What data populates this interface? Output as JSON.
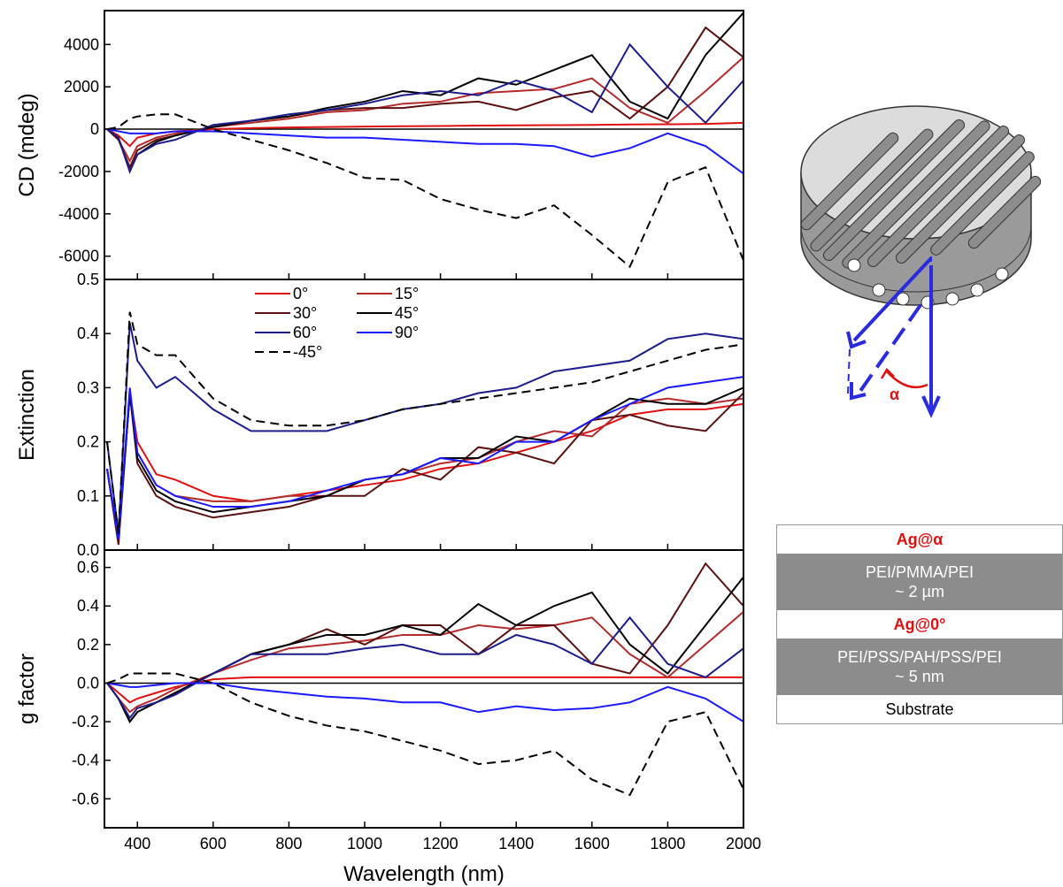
{
  "chart_data": [
    {
      "type": "line",
      "y_label": "CD (mdeg)",
      "xlim": [
        313,
        2000
      ],
      "xticks": [
        400,
        600,
        800,
        1000,
        1200,
        1400,
        1600,
        1800,
        2000
      ],
      "ylim": [
        -7100,
        5600
      ],
      "yticks": [
        -6000,
        -4000,
        -2000,
        0,
        2000,
        4000
      ],
      "zero_line": true,
      "x": [
        320,
        350,
        380,
        400,
        450,
        500,
        600,
        700,
        800,
        900,
        1000,
        1100,
        1200,
        1300,
        1400,
        1500,
        1600,
        1700,
        1800,
        1900,
        2000
      ],
      "series": [
        {
          "name": "0°",
          "color": "#e01010",
          "values": [
            0,
            -300,
            -800,
            -400,
            -200,
            -100,
            0,
            50,
            80,
            100,
            120,
            140,
            150,
            170,
            180,
            190,
            200,
            220,
            230,
            250,
            300
          ]
        },
        {
          "name": "15°",
          "color": "#b52a2a",
          "values": [
            0,
            -500,
            -1500,
            -800,
            -400,
            -200,
            100,
            300,
            500,
            800,
            900,
            1200,
            1300,
            1700,
            1800,
            1900,
            2400,
            1000,
            300,
            1800,
            3400
          ]
        },
        {
          "name": "30°",
          "color": "#5c1010",
          "values": [
            0,
            -500,
            -1800,
            -1000,
            -500,
            -300,
            100,
            400,
            600,
            900,
            1000,
            1000,
            1200,
            1300,
            900,
            1500,
            1800,
            500,
            2000,
            4800,
            3400
          ]
        },
        {
          "name": "45°",
          "color": "#000000",
          "values": [
            0,
            -400,
            -2000,
            -1200,
            -600,
            -300,
            100,
            400,
            600,
            1000,
            1300,
            1800,
            1600,
            2400,
            2100,
            2800,
            3500,
            1300,
            500,
            3500,
            5500
          ]
        },
        {
          "name": "60°",
          "color": "#1c1c8c",
          "values": [
            0,
            -400,
            -2000,
            -1200,
            -700,
            -500,
            200,
            400,
            700,
            900,
            1200,
            1600,
            1800,
            1600,
            2300,
            1800,
            800,
            4000,
            2000,
            300,
            2300
          ]
        },
        {
          "name": "90°",
          "color": "#1a1aff",
          "values": [
            0,
            -100,
            -200,
            -200,
            -200,
            -100,
            -100,
            -200,
            -300,
            -400,
            -400,
            -500,
            -600,
            -700,
            -700,
            -800,
            -1300,
            -900,
            -200,
            -800,
            -2100
          ]
        },
        {
          "name": "-45°",
          "color": "#000000",
          "linestyle": "dashed",
          "values": [
            0,
            100,
            500,
            600,
            700,
            700,
            0,
            -500,
            -1000,
            -1600,
            -2300,
            -2400,
            -3300,
            -3800,
            -4200,
            -3600,
            -5000,
            -6500,
            -2500,
            -1800,
            -6200
          ]
        }
      ]
    },
    {
      "type": "line",
      "y_label": "Extinction",
      "xlim": [
        313,
        2000
      ],
      "xticks": [
        400,
        600,
        800,
        1000,
        1200,
        1400,
        1600,
        1800,
        2000
      ],
      "ylim": [
        0,
        0.5
      ],
      "yticks": [
        {
          "value": 0,
          "label": "0.0"
        },
        0.1,
        0.2,
        0.3,
        0.4,
        0.5
      ],
      "legend": "upper center",
      "x": [
        320,
        350,
        380,
        400,
        450,
        500,
        600,
        700,
        800,
        900,
        1000,
        1100,
        1200,
        1300,
        1400,
        1500,
        1600,
        1700,
        1800,
        1900,
        2000
      ],
      "series": [
        {
          "name": "0°",
          "color": "#e01010",
          "values": [
            0.15,
            0.02,
            0.29,
            0.2,
            0.14,
            0.13,
            0.1,
            0.09,
            0.1,
            0.11,
            0.12,
            0.13,
            0.15,
            0.16,
            0.18,
            0.2,
            0.22,
            0.25,
            0.26,
            0.26,
            0.27
          ]
        },
        {
          "name": "15°",
          "color": "#b52a2a",
          "values": [
            0.15,
            0.02,
            0.29,
            0.18,
            0.12,
            0.1,
            0.09,
            0.09,
            0.1,
            0.1,
            0.13,
            0.14,
            0.16,
            0.17,
            0.2,
            0.22,
            0.21,
            0.27,
            0.28,
            0.27,
            0.28
          ]
        },
        {
          "name": "30°",
          "color": "#5c1010",
          "values": [
            0.15,
            0.01,
            0.29,
            0.16,
            0.1,
            0.08,
            0.06,
            0.07,
            0.08,
            0.1,
            0.1,
            0.15,
            0.13,
            0.19,
            0.18,
            0.16,
            0.24,
            0.25,
            0.23,
            0.22,
            0.29
          ]
        },
        {
          "name": "45°",
          "color": "#000000",
          "values": [
            0.15,
            0.02,
            0.29,
            0.17,
            0.11,
            0.09,
            0.07,
            0.08,
            0.09,
            0.1,
            0.13,
            0.14,
            0.17,
            0.17,
            0.21,
            0.2,
            0.24,
            0.28,
            0.27,
            0.27,
            0.3
          ]
        },
        {
          "name": "60°",
          "color": "#1c1c8c",
          "values": [
            0.2,
            0.03,
            0.42,
            0.35,
            0.3,
            0.32,
            0.26,
            0.22,
            0.22,
            0.22,
            0.24,
            0.26,
            0.27,
            0.29,
            0.3,
            0.33,
            0.34,
            0.35,
            0.39,
            0.4,
            0.39
          ]
        },
        {
          "name": "90°",
          "color": "#1a1aff",
          "values": [
            0.15,
            0.02,
            0.3,
            0.18,
            0.12,
            0.1,
            0.08,
            0.08,
            0.09,
            0.11,
            0.13,
            0.14,
            0.17,
            0.16,
            0.2,
            0.2,
            0.24,
            0.27,
            0.3,
            0.31,
            0.32
          ]
        },
        {
          "name": "-45°",
          "color": "#000000",
          "linestyle": "dashed",
          "values": [
            0.2,
            0.03,
            0.44,
            0.38,
            0.36,
            0.36,
            0.28,
            0.24,
            0.23,
            0.23,
            0.24,
            0.26,
            0.27,
            0.28,
            0.29,
            0.3,
            0.31,
            0.33,
            0.35,
            0.37,
            0.38
          ]
        }
      ]
    },
    {
      "type": "line",
      "y_label": "g factor",
      "x_label": "Wavelength (nm)",
      "xlim": [
        313,
        2000
      ],
      "xticks": [
        400,
        600,
        800,
        1000,
        1200,
        1400,
        1600,
        1800,
        2000
      ],
      "ylim": [
        -0.75,
        0.69
      ],
      "yticks": [
        -0.6,
        -0.4,
        -0.2,
        {
          "value": 0,
          "label": "0.0"
        },
        0.2,
        0.4,
        0.6
      ],
      "zero_line": true,
      "x": [
        320,
        350,
        380,
        400,
        450,
        500,
        600,
        700,
        800,
        900,
        1000,
        1100,
        1200,
        1300,
        1400,
        1500,
        1600,
        1700,
        1800,
        1900,
        2000
      ],
      "series": [
        {
          "name": "0°",
          "color": "#e01010",
          "values": [
            0,
            -0.05,
            -0.1,
            -0.08,
            -0.05,
            -0.02,
            0.02,
            0.03,
            0.03,
            0.03,
            0.03,
            0.03,
            0.03,
            0.03,
            0.03,
            0.03,
            0.03,
            0.03,
            0.03,
            0.03,
            0.03
          ]
        },
        {
          "name": "15°",
          "color": "#b52a2a",
          "values": [
            0,
            -0.08,
            -0.15,
            -0.12,
            -0.08,
            -0.03,
            0.05,
            0.12,
            0.18,
            0.2,
            0.22,
            0.25,
            0.25,
            0.3,
            0.28,
            0.3,
            0.34,
            0.15,
            0.03,
            0.2,
            0.37
          ]
        },
        {
          "name": "30°",
          "color": "#5c1010",
          "values": [
            0,
            -0.08,
            -0.2,
            -0.15,
            -0.1,
            -0.05,
            0.05,
            0.15,
            0.2,
            0.28,
            0.2,
            0.3,
            0.3,
            0.15,
            0.3,
            0.3,
            0.1,
            0.05,
            0.3,
            0.62,
            0.4
          ]
        },
        {
          "name": "45°",
          "color": "#000000",
          "values": [
            0,
            -0.08,
            -0.2,
            -0.15,
            -0.1,
            -0.05,
            0.05,
            0.15,
            0.2,
            0.25,
            0.25,
            0.3,
            0.25,
            0.41,
            0.3,
            0.4,
            0.47,
            0.2,
            0.05,
            0.3,
            0.55
          ]
        },
        {
          "name": "60°",
          "color": "#1c1c8c",
          "values": [
            0,
            -0.08,
            -0.18,
            -0.13,
            -0.1,
            -0.06,
            0.05,
            0.15,
            0.15,
            0.15,
            0.18,
            0.2,
            0.15,
            0.15,
            0.25,
            0.2,
            0.1,
            0.34,
            0.1,
            0.03,
            0.18
          ]
        },
        {
          "name": "90°",
          "color": "#1a1aff",
          "values": [
            0,
            -0.01,
            -0.02,
            -0.02,
            -0.01,
            0,
            0,
            -0.03,
            -0.05,
            -0.07,
            -0.08,
            -0.1,
            -0.1,
            -0.15,
            -0.12,
            -0.14,
            -0.13,
            -0.1,
            -0.02,
            -0.08,
            -0.2
          ]
        },
        {
          "name": "-45°",
          "color": "#000000",
          "linestyle": "dashed",
          "values": [
            0,
            0.02,
            0.05,
            0.05,
            0.05,
            0.05,
            0,
            -0.1,
            -0.17,
            -0.22,
            -0.25,
            -0.3,
            -0.35,
            -0.42,
            -0.4,
            -0.35,
            -0.5,
            -0.58,
            -0.2,
            -0.15,
            -0.55
          ]
        }
      ]
    }
  ],
  "diagram": {
    "angle_label": "α"
  },
  "layers": [
    [
      "Ag@α"
    ],
    [
      "PEI/PMMA/PEI",
      "~ 2 µm"
    ],
    [
      "Ag@0°"
    ],
    [
      "PEI/PSS/PAH/PSS/PEI",
      "~ 5 nm"
    ],
    [
      "Substrate"
    ]
  ]
}
